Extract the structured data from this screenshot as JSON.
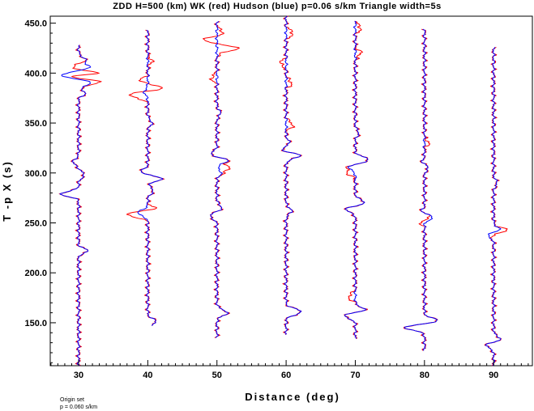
{
  "chart_data": {
    "type": "line",
    "title": "ZDD H=500 (km) WK (red) Hudson (blue) p=0.06 s/km Triangle width=5s",
    "xlabel": "Distance (deg)",
    "ylabel": "T -p X (s)",
    "xlim": [
      25.9,
      95.6
    ],
    "ylim": [
      107,
      457
    ],
    "x_ticks": [
      "30",
      "40",
      "50",
      "60",
      "70",
      "80",
      "90"
    ],
    "x_tick_values": [
      30,
      40,
      50,
      60,
      70,
      80,
      90
    ],
    "y_ticks": [
      "150.0",
      "200.0",
      "250.0",
      "300.0",
      "350.0",
      "400.0",
      "450.0"
    ],
    "y_tick_values": [
      150,
      200,
      250,
      300,
      350,
      400,
      450
    ],
    "series_legend": [
      {
        "model": "WK",
        "color": "#ff0000"
      },
      {
        "model": "Hudson",
        "color": "#0000ff"
      }
    ],
    "traces": [
      {
        "distance": 30,
        "start": 107,
        "end": 428,
        "pulses": [
          [
            279,
            -2.6,
            2.5
          ],
          [
            222,
            1.4,
            2.2
          ],
          [
            298,
            0.8,
            3
          ],
          [
            311,
            -0.8,
            3
          ],
          [
            380,
            1.0,
            2.5
          ],
          [
            390,
            1.8,
            2.5
          ],
          [
            398,
            -2.5,
            2.5
          ],
          [
            406,
            1.5,
            2.5
          ],
          [
            413,
            1.0,
            3
          ]
        ],
        "red_extra": [
          [
            392,
            1.5,
            2.5
          ],
          [
            400,
            4.5,
            2.0
          ],
          [
            406,
            -2.5,
            2.5
          ]
        ]
      },
      {
        "distance": 40,
        "start": 147,
        "end": 443,
        "pulses": [
          [
            151,
            1.2,
            3
          ],
          [
            260,
            -1.4,
            3
          ],
          [
            282,
            0.8,
            3
          ],
          [
            295,
            2.3,
            3
          ],
          [
            300,
            -1.4,
            3
          ],
          [
            350,
            0.6,
            3
          ],
          [
            381,
            -0.5,
            3
          ]
        ],
        "red_extra": [
          [
            258,
            -2.0,
            2.5
          ],
          [
            264,
            1.5,
            2.5
          ],
          [
            378,
            -2.5,
            3
          ],
          [
            385,
            2.5,
            3
          ],
          [
            392,
            -1.2,
            3
          ],
          [
            412,
            0.6,
            3
          ]
        ]
      },
      {
        "distance": 50,
        "start": 135,
        "end": 452,
        "pulses": [
          [
            160,
            1.5,
            3
          ],
          [
            257,
            -1.0,
            3
          ],
          [
            265,
            0.7,
            3
          ],
          [
            300,
            0.6,
            3
          ],
          [
            313,
            1.8,
            3
          ],
          [
            318,
            -1.2,
            3
          ],
          [
            360,
            0.5,
            3
          ]
        ],
        "red_extra": [
          [
            305,
            1.5,
            3
          ],
          [
            425,
            3.0,
            3
          ],
          [
            433,
            -2.0,
            3
          ],
          [
            440,
            1.0,
            3
          ],
          [
            395,
            -0.8,
            3
          ]
        ]
      },
      {
        "distance": 60,
        "start": 138,
        "end": 457,
        "pulses": [
          [
            161,
            2.2,
            3
          ],
          [
            318,
            2.4,
            3
          ],
          [
            322,
            -1.2,
            3
          ],
          [
            262,
            0.8,
            3
          ],
          [
            330,
            0.5,
            3
          ]
        ],
        "red_extra": [
          [
            348,
            1.0,
            3
          ],
          [
            390,
            0.8,
            3
          ],
          [
            410,
            -0.8,
            3
          ],
          [
            440,
            1.0,
            3
          ]
        ]
      },
      {
        "distance": 70,
        "start": 134,
        "end": 452,
        "pulses": [
          [
            158,
            -2.2,
            3
          ],
          [
            162,
            2.0,
            3
          ],
          [
            264,
            -1.5,
            3
          ],
          [
            270,
            1.5,
            3
          ],
          [
            313,
            2.0,
            3
          ],
          [
            306,
            -1.0,
            3
          ],
          [
            340,
            0.5,
            3
          ]
        ],
        "red_extra": [
          [
            176,
            -1.0,
            3
          ],
          [
            300,
            -1.0,
            3
          ],
          [
            420,
            0.8,
            3
          ],
          [
            445,
            0.8,
            3
          ]
        ]
      },
      {
        "distance": 80,
        "start": 122,
        "end": 444,
        "pulses": [
          [
            146,
            -3.3,
            3
          ],
          [
            151,
            2.5,
            3
          ],
          [
            259,
            -1.6,
            3
          ],
          [
            257,
            2.3,
            3
          ],
          [
            306,
            0.7,
            3
          ],
          [
            310,
            -0.5,
            3
          ]
        ],
        "red_extra": [
          [
            252,
            -0.8,
            3
          ],
          [
            330,
            0.6,
            3
          ]
        ]
      },
      {
        "distance": 90,
        "start": 107,
        "end": 426,
        "pulses": [
          [
            128,
            -1.3,
            3
          ],
          [
            133,
            1.2,
            3
          ],
          [
            239,
            -1.5,
            3
          ],
          [
            242,
            1.5,
            3
          ],
          [
            290,
            0.5,
            3
          ]
        ],
        "red_extra": [
          [
            241,
            1.3,
            3
          ]
        ]
      }
    ],
    "grid": false,
    "legend": "none"
  },
  "footnote": {
    "line1": "Origin set",
    "line2": "p = 0.060 s/km"
  }
}
